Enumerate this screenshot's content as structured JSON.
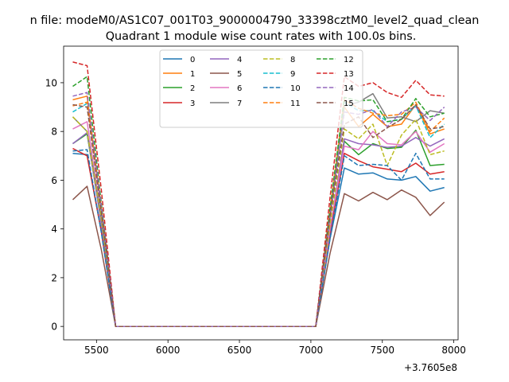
{
  "figure": {
    "suptitle": "n file: modeM0/AS1C07_001T03_9000004790_33398cztM0_level2_quad_clean",
    "title": "Quadrant 1 module wise count rates with 100.0s bins.",
    "offset_label": "+3.7605e8"
  },
  "chart_data": {
    "type": "line",
    "title": "Quadrant 1 module wise count rates with 100.0s bins.",
    "xlabel": "",
    "ylabel": "",
    "x_offset": 376050000,
    "xlim": [
      5270,
      8030
    ],
    "ylim": [
      -0.55,
      11.5
    ],
    "xticks": [
      5500,
      6000,
      6500,
      7000,
      7500,
      8000
    ],
    "yticks": [
      0,
      2,
      4,
      6,
      8,
      10
    ],
    "grid": false,
    "legend": {
      "placement": "upper center",
      "ncol": 4
    },
    "x": [
      5334,
      5434,
      5534,
      5634,
      5734,
      5834,
      5934,
      6034,
      6134,
      6234,
      6334,
      6434,
      6534,
      6634,
      6734,
      6834,
      6934,
      7034,
      7134,
      7234,
      7334,
      7434,
      7534,
      7634,
      7734,
      7834,
      7934
    ],
    "series": [
      {
        "name": "0",
        "color": "#1f77b4",
        "dash": "solid",
        "values": [
          7.1,
          7.05,
          3.9,
          0,
          0,
          0,
          0,
          0,
          0,
          0,
          0,
          0,
          0,
          0,
          0,
          0,
          0,
          0,
          3.6,
          6.5,
          6.25,
          6.3,
          6.05,
          6.0,
          6.15,
          5.55,
          5.7
        ]
      },
      {
        "name": "1",
        "color": "#ff7f0e",
        "dash": "solid",
        "values": [
          9.3,
          9.45,
          4.9,
          0,
          0,
          0,
          0,
          0,
          0,
          0,
          0,
          0,
          0,
          0,
          0,
          0,
          0,
          0,
          4.5,
          9.0,
          8.2,
          8.7,
          8.2,
          8.3,
          9.1,
          7.9,
          8.1
        ]
      },
      {
        "name": "2",
        "color": "#2ca02c",
        "dash": "solid",
        "values": [
          7.5,
          7.9,
          4.3,
          0,
          0,
          0,
          0,
          0,
          0,
          0,
          0,
          0,
          0,
          0,
          0,
          0,
          0,
          0,
          3.95,
          7.6,
          7.05,
          7.5,
          7.3,
          7.35,
          8.05,
          6.6,
          6.65
        ]
      },
      {
        "name": "3",
        "color": "#d62728",
        "dash": "solid",
        "values": [
          7.3,
          7.0,
          3.9,
          0,
          0,
          0,
          0,
          0,
          0,
          0,
          0,
          0,
          0,
          0,
          0,
          0,
          0,
          0,
          3.75,
          7.1,
          6.8,
          6.55,
          6.45,
          6.35,
          6.7,
          6.25,
          6.35
        ]
      },
      {
        "name": "4",
        "color": "#9467bd",
        "dash": "solid",
        "values": [
          7.5,
          7.95,
          4.2,
          0,
          0,
          0,
          0,
          0,
          0,
          0,
          0,
          0,
          0,
          0,
          0,
          0,
          0,
          0,
          3.95,
          7.7,
          7.5,
          7.45,
          7.35,
          7.4,
          7.75,
          7.4,
          7.7
        ]
      },
      {
        "name": "5",
        "color": "#8c564b",
        "dash": "solid",
        "values": [
          5.2,
          5.75,
          3.15,
          0,
          0,
          0,
          0,
          0,
          0,
          0,
          0,
          0,
          0,
          0,
          0,
          0,
          0,
          0,
          3.0,
          5.45,
          5.15,
          5.5,
          5.2,
          5.6,
          5.3,
          4.55,
          5.1
        ]
      },
      {
        "name": "6",
        "color": "#e377c2",
        "dash": "solid",
        "values": [
          8.1,
          8.4,
          4.5,
          0,
          0,
          0,
          0,
          0,
          0,
          0,
          0,
          0,
          0,
          0,
          0,
          0,
          0,
          0,
          4.05,
          7.4,
          7.25,
          8.0,
          7.5,
          7.45,
          8.0,
          7.15,
          7.5
        ]
      },
      {
        "name": "7",
        "color": "#7f7f7f",
        "dash": "solid",
        "values": [
          8.6,
          8.0,
          4.45,
          0,
          0,
          0,
          0,
          0,
          0,
          0,
          0,
          0,
          0,
          0,
          0,
          0,
          0,
          0,
          4.45,
          9.05,
          9.2,
          9.55,
          8.55,
          8.6,
          8.4,
          8.85,
          8.75
        ]
      },
      {
        "name": "8",
        "color": "#bcbd22",
        "dash": "dashed",
        "values": [
          8.6,
          8.0,
          4.4,
          0,
          0,
          0,
          0,
          0,
          0,
          0,
          0,
          0,
          0,
          0,
          0,
          0,
          0,
          0,
          4.2,
          8.1,
          7.7,
          8.3,
          6.6,
          7.85,
          8.5,
          7.05,
          7.2
        ]
      },
      {
        "name": "9",
        "color": "#17becf",
        "dash": "dashed",
        "values": [
          8.8,
          9.15,
          4.7,
          0,
          0,
          0,
          0,
          0,
          0,
          0,
          0,
          0,
          0,
          0,
          0,
          0,
          0,
          0,
          4.6,
          9.2,
          8.85,
          8.85,
          8.4,
          8.5,
          9.05,
          7.75,
          8.3
        ]
      },
      {
        "name": "10",
        "color": "#1f77b4",
        "dash": "dashed",
        "values": [
          7.2,
          7.25,
          3.85,
          0,
          0,
          0,
          0,
          0,
          0,
          0,
          0,
          0,
          0,
          0,
          0,
          0,
          0,
          0,
          3.6,
          7.0,
          6.6,
          6.65,
          6.6,
          6.0,
          7.1,
          6.05,
          6.05
        ]
      },
      {
        "name": "11",
        "color": "#ff7f0e",
        "dash": "dashed",
        "values": [
          9.05,
          9.2,
          4.85,
          0,
          0,
          0,
          0,
          0,
          0,
          0,
          0,
          0,
          0,
          0,
          0,
          0,
          0,
          0,
          4.75,
          9.3,
          8.95,
          8.75,
          8.65,
          8.7,
          9.2,
          8.0,
          8.55
        ]
      },
      {
        "name": "12",
        "color": "#2ca02c",
        "dash": "dashed",
        "values": [
          9.85,
          10.25,
          5.05,
          0,
          0,
          0,
          0,
          0,
          0,
          0,
          0,
          0,
          0,
          0,
          0,
          0,
          0,
          0,
          4.85,
          9.4,
          9.25,
          9.3,
          8.4,
          8.5,
          9.35,
          8.6,
          8.75
        ]
      },
      {
        "name": "13",
        "color": "#d62728",
        "dash": "dashed",
        "values": [
          10.85,
          10.7,
          5.6,
          0,
          0,
          0,
          0,
          0,
          0,
          0,
          0,
          0,
          0,
          0,
          0,
          0,
          0,
          0,
          5.3,
          10.25,
          9.85,
          10.0,
          9.6,
          9.4,
          10.1,
          9.5,
          9.45
        ]
      },
      {
        "name": "14",
        "color": "#9467bd",
        "dash": "dashed",
        "values": [
          9.45,
          9.6,
          4.9,
          0,
          0,
          0,
          0,
          0,
          0,
          0,
          0,
          0,
          0,
          0,
          0,
          0,
          0,
          0,
          4.55,
          8.8,
          8.7,
          8.9,
          8.2,
          8.8,
          9.0,
          8.45,
          9.0
        ]
      },
      {
        "name": "15",
        "color": "#8c564b",
        "dash": "dashed",
        "values": [
          9.1,
          9.0,
          4.7,
          0,
          0,
          0,
          0,
          0,
          0,
          0,
          0,
          0,
          0,
          0,
          0,
          0,
          0,
          0,
          4.55,
          8.3,
          8.6,
          7.75,
          8.15,
          8.5,
          9.1,
          8.1,
          8.2
        ]
      }
    ]
  }
}
